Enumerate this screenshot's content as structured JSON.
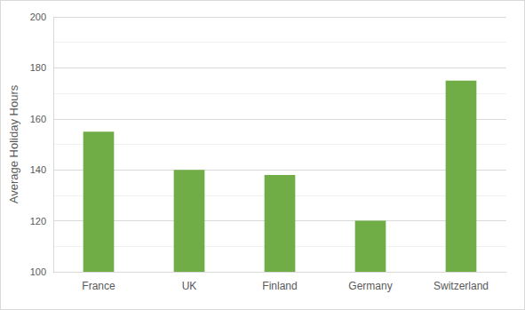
{
  "chart_data": {
    "type": "bar",
    "y_label": "Average Holiday Hours",
    "categories": [
      "France",
      "UK",
      "Finland",
      "Germany",
      "Switzerland"
    ],
    "values": [
      155,
      140,
      138,
      120,
      175
    ],
    "color": "#70ad47",
    "ylim": [
      100,
      200
    ],
    "yticks": [
      100,
      120,
      140,
      160,
      180,
      200
    ],
    "grid": true
  }
}
